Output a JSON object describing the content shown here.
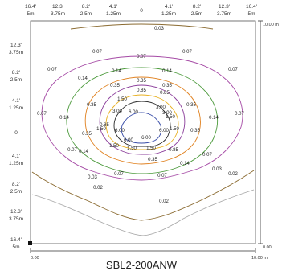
{
  "model": "SBL2-200ANW",
  "top_axis": {
    "feet": [
      "16.4'",
      "12.3'",
      "8.2'",
      "4.1'",
      "0",
      "4.1'",
      "8.2'",
      "12.3'",
      "16.4'"
    ],
    "meters": [
      "5m",
      "3.75m",
      "2.5m",
      "1.25m",
      "",
      "1.25m",
      "2.5m",
      "3.75m",
      "5m"
    ]
  },
  "left_axis": {
    "feet": [
      "12.3'",
      "8.2'",
      "4.1'",
      "0",
      "4.1'",
      "8.2'",
      "12.3'",
      "16.4'"
    ],
    "meters": [
      "3.75m",
      "2.5m",
      "1.25m",
      "",
      "1.25m",
      "2.5m",
      "3.75m",
      "5m"
    ]
  },
  "scale": {
    "x_start": "0.00",
    "x_end": "10.00 m",
    "y_start": "0.00",
    "y_end": "10.00 m"
  },
  "contours": [
    {
      "value": "0.02",
      "color": "#a8a8a8"
    },
    {
      "value": "0.03",
      "color": "#8a6a30"
    },
    {
      "value": "0.07",
      "color": "#a54aa5"
    },
    {
      "value": "0.14",
      "color": "#4c9a3c"
    },
    {
      "value": "0.35",
      "color": "#e0801e"
    },
    {
      "value": "0.85",
      "color": "#8a3c9a"
    },
    {
      "value": "1.50",
      "color": "#e8b020"
    },
    {
      "value": "3.00",
      "color": "#2a2a2a"
    },
    {
      "value": "6.00",
      "color": "#3a4ea8"
    }
  ],
  "labels": {
    "l003_top": "0.03",
    "l007_ul": "0.07",
    "l007_uc": "0.07",
    "l007_ur": "0.07",
    "l007_l": "0.07",
    "l007_r": "0.07",
    "l007_ml": "0.07",
    "l007_mr": "0.07",
    "l007_bl": "0.07",
    "l007_bc": "0.07",
    "l003_bl": "0.03",
    "l003_br": "0.03",
    "l002_bl": "0.02",
    "l002_br": "0.02",
    "l002_b": "0.02",
    "l014_ul": "0.14",
    "l014_uc": "0.14",
    "l014_ur": "0.14",
    "l014_ml": "0.14",
    "l014_mr": "0.14",
    "l014_bl": "0.14",
    "l014_br": "0.14",
    "l035_t": "0.35",
    "l035_ul": "0.35",
    "l035_ur": "0.35",
    "l035_ml": "0.35",
    "l035_mr": "0.35",
    "l035_bl": "0.35",
    "l035_bc": "0.35",
    "l035_br": "0.35",
    "l085_t": "0.85",
    "l085_l": "0.85",
    "l085_r": "0.85",
    "l085_b": "0.85",
    "l150_ul": "1.50",
    "l150_ur": "1.50",
    "l150_l": "1.50",
    "l150_r": "1.50",
    "l150_bl": "1.50",
    "l150_bc": "1.50",
    "l150_br": "1.50",
    "l300_ul": "3.00",
    "l300_ur": "3.00",
    "l300_b": "3.00",
    "l600_t": "6.00",
    "l600_l": "6.00",
    "l600_r": "6.00",
    "l600_bl": "6.00",
    "l600_br": "6.00"
  }
}
